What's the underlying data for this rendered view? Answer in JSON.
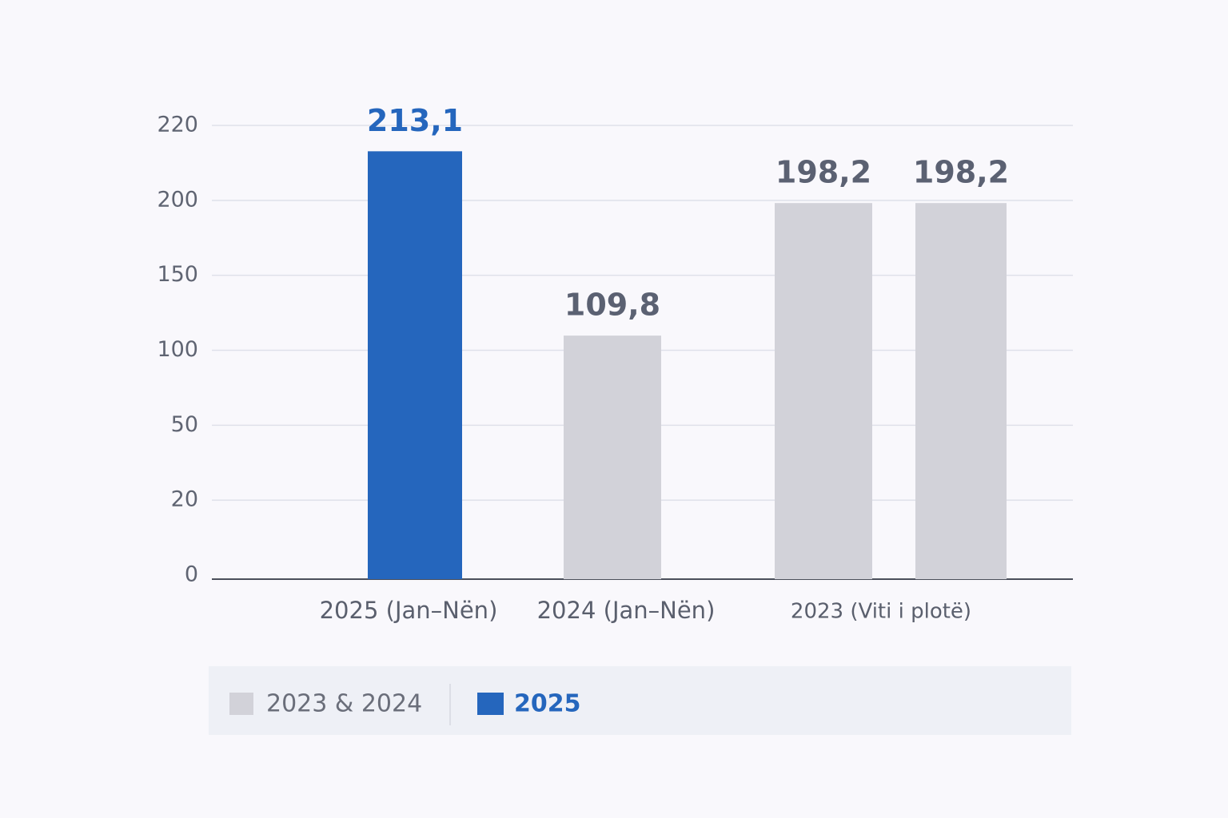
{
  "chart_data": {
    "type": "bar",
    "categories": [
      "2025 (Jan–Nën)",
      "2024 (Jan–Nën)",
      "2023 (Viti i plotë)",
      null
    ],
    "series": [
      {
        "name": "2023 & 2024",
        "color": "#d2d2d9",
        "values": [
          null,
          109.8,
          198.2,
          198.2
        ],
        "value_labels": [
          null,
          "109,8",
          "198,2",
          "198,2"
        ]
      },
      {
        "name": "2025",
        "color": "#2566bd",
        "values": [
          213.1,
          null,
          null,
          null
        ],
        "value_labels": [
          "213,1",
          null,
          null,
          null
        ]
      }
    ],
    "ylim": [
      0,
      220
    ],
    "yticks": [
      0,
      20,
      50,
      100,
      150,
      200,
      220
    ],
    "grid": true
  }
}
